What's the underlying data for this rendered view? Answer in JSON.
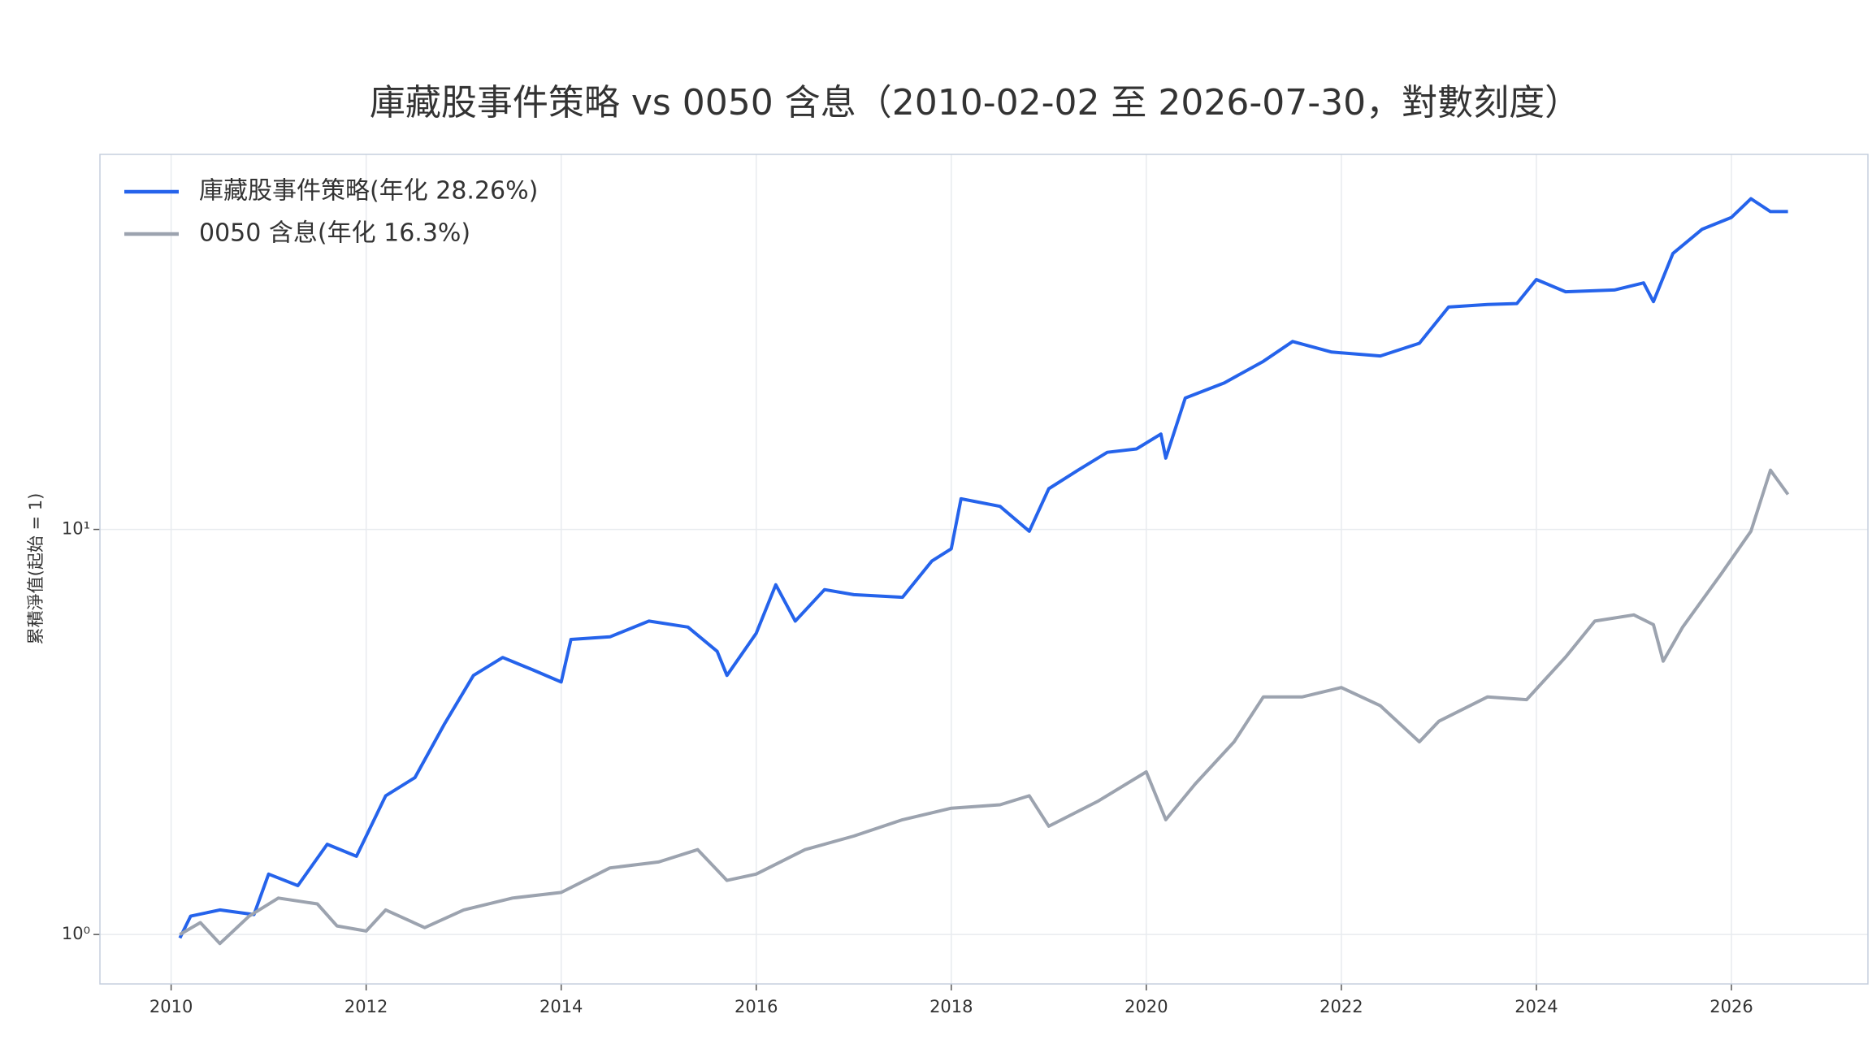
{
  "chart_data": {
    "type": "line",
    "title": "庫藏股事件策略 vs 0050 含息（2010-02-02 至 2026-07-30，對數刻度）",
    "y_label": "累積淨值(起始 = 1)",
    "log_y": true,
    "grid": true,
    "legend": "upper left",
    "xlim": [
      2009.27,
      2027.4
    ],
    "xticks": [
      2010,
      2012,
      2014,
      2016,
      2018,
      2020,
      2022,
      2024,
      2026
    ],
    "ylim": [
      0.755,
      84.3
    ],
    "yticks": [
      {
        "value": 1,
        "label": "10⁰"
      },
      {
        "value": 10,
        "label": "10¹"
      }
    ],
    "series": [
      {
        "name": "庫藏股事件策略(年化 28.26%)",
        "color": "#2563eb",
        "x": [
          2010.09,
          2010.2,
          2010.5,
          2010.85,
          2011.0,
          2011.3,
          2011.6,
          2011.9,
          2012.2,
          2012.5,
          2012.8,
          2013.1,
          2013.4,
          2013.7,
          2014.0,
          2014.1,
          2014.5,
          2014.9,
          2015.3,
          2015.6,
          2015.7,
          2016.0,
          2016.2,
          2016.4,
          2016.7,
          2017.0,
          2017.5,
          2017.8,
          2018.0,
          2018.1,
          2018.5,
          2018.8,
          2019.0,
          2019.3,
          2019.6,
          2019.9,
          2020.15,
          2020.2,
          2020.4,
          2020.8,
          2021.2,
          2021.5,
          2021.9,
          2022.4,
          2022.8,
          2023.1,
          2023.5,
          2023.8,
          2024.0,
          2024.3,
          2024.8,
          2025.1,
          2025.2,
          2025.4,
          2025.7,
          2026.0,
          2026.2,
          2026.4,
          2026.58
        ],
        "values": [
          0.98,
          1.11,
          1.15,
          1.12,
          1.41,
          1.32,
          1.67,
          1.56,
          2.2,
          2.44,
          3.3,
          4.36,
          4.83,
          4.51,
          4.2,
          5.35,
          5.43,
          5.94,
          5.74,
          5.0,
          4.36,
          5.54,
          7.3,
          5.94,
          7.1,
          6.9,
          6.8,
          8.35,
          8.96,
          11.9,
          11.4,
          9.9,
          12.6,
          14.0,
          15.5,
          15.8,
          17.2,
          15.0,
          21.1,
          23.0,
          26.0,
          29.1,
          27.4,
          26.8,
          28.8,
          35.4,
          35.9,
          36.1,
          41.4,
          38.6,
          39.0,
          40.6,
          36.5,
          48.0,
          55.1,
          58.9,
          65.5,
          60.9,
          60.9
        ]
      },
      {
        "name": "0050 含息(年化 16.3%)",
        "color": "#9ca3af",
        "x": [
          2010.09,
          2010.3,
          2010.5,
          2010.8,
          2011.1,
          2011.5,
          2011.7,
          2012.0,
          2012.2,
          2012.6,
          2013.0,
          2013.5,
          2014.0,
          2014.5,
          2015.0,
          2015.4,
          2015.7,
          2016.0,
          2016.5,
          2017.0,
          2017.5,
          2018.0,
          2018.5,
          2018.8,
          2019.0,
          2019.5,
          2020.0,
          2020.2,
          2020.5,
          2020.9,
          2021.2,
          2021.6,
          2022.0,
          2022.4,
          2022.8,
          2023.0,
          2023.5,
          2023.9,
          2024.3,
          2024.6,
          2025.0,
          2025.2,
          2025.3,
          2025.5,
          2025.9,
          2026.2,
          2026.4,
          2026.58
        ],
        "values": [
          1.0,
          1.07,
          0.95,
          1.11,
          1.23,
          1.19,
          1.05,
          1.02,
          1.15,
          1.04,
          1.15,
          1.23,
          1.27,
          1.46,
          1.51,
          1.62,
          1.36,
          1.41,
          1.62,
          1.75,
          1.92,
          2.05,
          2.09,
          2.2,
          1.85,
          2.13,
          2.52,
          1.92,
          2.35,
          2.99,
          3.86,
          3.86,
          4.07,
          3.67,
          2.99,
          3.36,
          3.86,
          3.8,
          4.84,
          5.94,
          6.15,
          5.82,
          4.73,
          5.74,
          7.8,
          9.9,
          14.0,
          12.2
        ]
      }
    ]
  }
}
